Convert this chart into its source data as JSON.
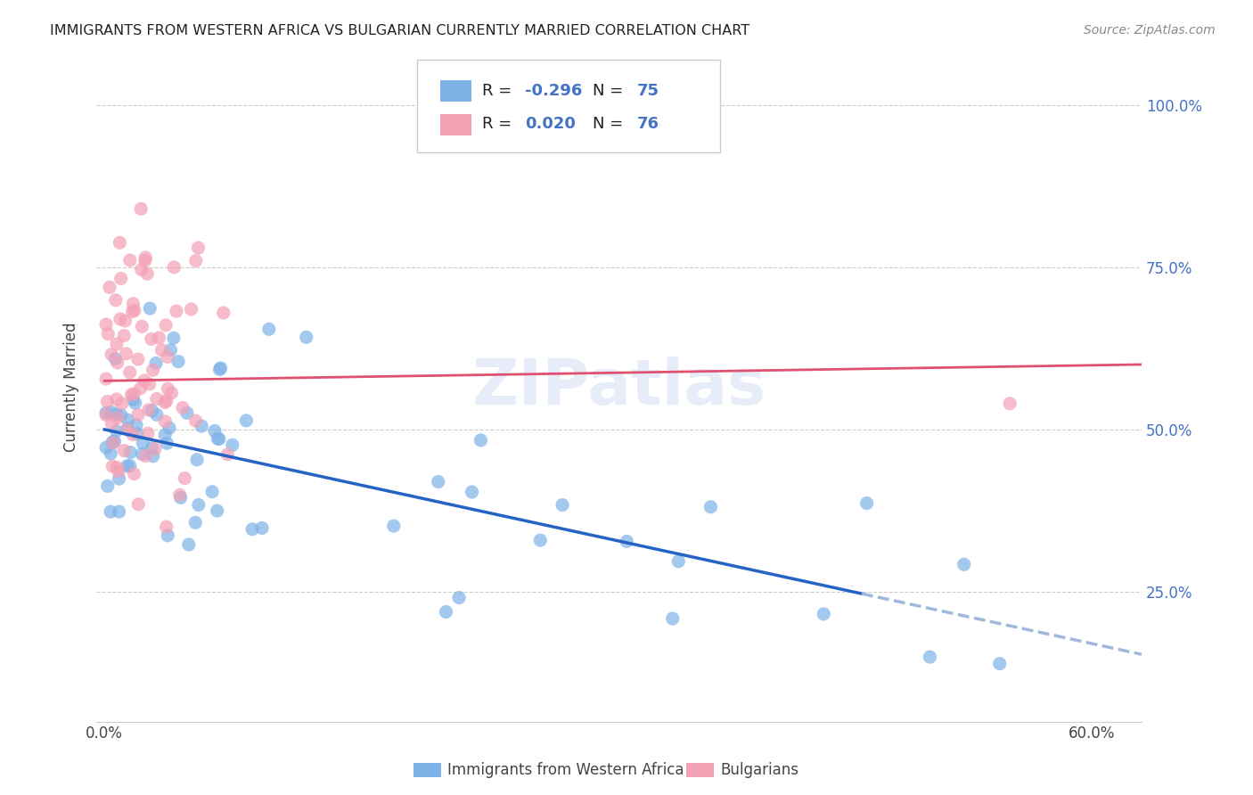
{
  "title": "IMMIGRANTS FROM WESTERN AFRICA VS BULGARIAN CURRENTLY MARRIED CORRELATION CHART",
  "source": "Source: ZipAtlas.com",
  "ylabel": "Currently Married",
  "ytick_positions": [
    0.25,
    0.5,
    0.75,
    1.0
  ],
  "ytick_labels": [
    "25.0%",
    "50.0%",
    "75.0%",
    "100.0%"
  ],
  "xtick_positions": [
    0.0,
    0.1,
    0.2,
    0.3,
    0.4,
    0.5,
    0.6
  ],
  "xtick_labels": [
    "0.0%",
    "",
    "",
    "",
    "",
    "",
    "60.0%"
  ],
  "xlim": [
    -0.005,
    0.63
  ],
  "ylim": [
    0.05,
    1.08
  ],
  "color_blue": "#7EB3E8",
  "color_pink": "#F4A0B5",
  "line_blue": "#2563C4",
  "line_pink": "#E05070",
  "line_blue_dash": "#A0B8DC",
  "watermark": "ZIPatlas",
  "legend_r1": "R = ",
  "legend_v1": "-0.296",
  "legend_n1_label": "N = ",
  "legend_n1": "75",
  "legend_r2": "R =  ",
  "legend_v2": "0.020",
  "legend_n2_label": "N = ",
  "legend_n2": "76",
  "bottom_label1": "Immigrants from Western Africa",
  "bottom_label2": "Bulgarians",
  "slope_blue": -0.55,
  "intercept_blue": 0.5,
  "slope_pink": 0.04,
  "intercept_pink": 0.575
}
